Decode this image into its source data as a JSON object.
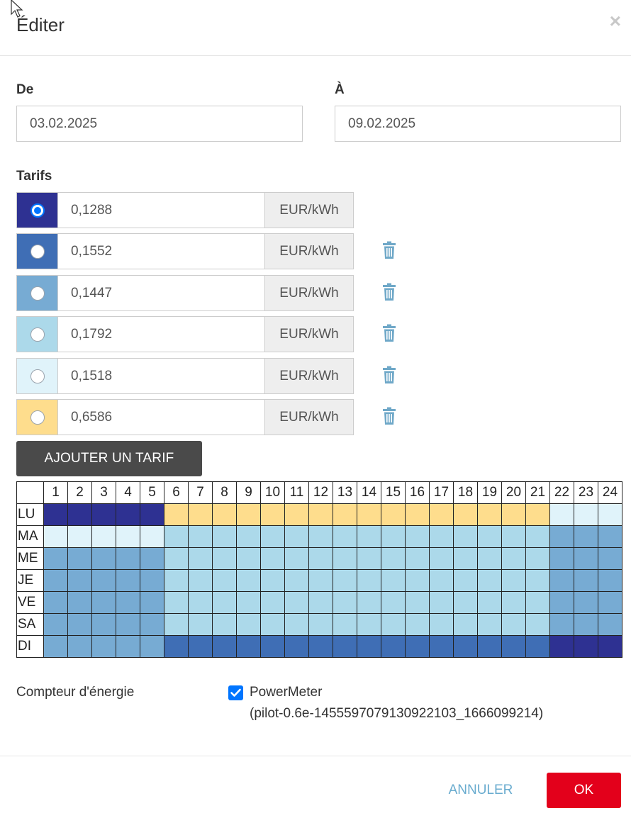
{
  "modal": {
    "title": "Éditer",
    "close_label": "×"
  },
  "dates": {
    "from_label": "De",
    "from_value": "03.02.2025",
    "to_label": "À",
    "to_value": "09.02.2025"
  },
  "tariffs": {
    "label": "Tarifs",
    "unit": "EUR/kWh",
    "items": [
      {
        "value": "0,1288",
        "color": "#2e3192",
        "selected": true,
        "deletable": false
      },
      {
        "value": "0,1552",
        "color": "#3f6eb5",
        "selected": false,
        "deletable": true
      },
      {
        "value": "0,1447",
        "color": "#77abd3",
        "selected": false,
        "deletable": true
      },
      {
        "value": "0,1792",
        "color": "#acd9ea",
        "selected": false,
        "deletable": true
      },
      {
        "value": "0,1518",
        "color": "#e0f3fa",
        "selected": false,
        "deletable": true
      },
      {
        "value": "0,6586",
        "color": "#fedd8d",
        "selected": false,
        "deletable": true
      }
    ],
    "add_button_label": "AJOUTER UN TARIF"
  },
  "schedule": {
    "hours": [
      "1",
      "2",
      "3",
      "4",
      "5",
      "6",
      "7",
      "8",
      "9",
      "10",
      "11",
      "12",
      "13",
      "14",
      "15",
      "16",
      "17",
      "18",
      "19",
      "20",
      "21",
      "22",
      "23",
      "24"
    ],
    "rows": [
      {
        "day": "LU",
        "tariffs": [
          0,
          0,
          0,
          0,
          0,
          5,
          5,
          5,
          5,
          5,
          5,
          5,
          5,
          5,
          5,
          5,
          5,
          5,
          5,
          5,
          5,
          4,
          4,
          4
        ]
      },
      {
        "day": "MA",
        "tariffs": [
          4,
          4,
          4,
          4,
          4,
          3,
          3,
          3,
          3,
          3,
          3,
          3,
          3,
          3,
          3,
          3,
          3,
          3,
          3,
          3,
          3,
          2,
          2,
          2
        ]
      },
      {
        "day": "ME",
        "tariffs": [
          2,
          2,
          2,
          2,
          2,
          3,
          3,
          3,
          3,
          3,
          3,
          3,
          3,
          3,
          3,
          3,
          3,
          3,
          3,
          3,
          3,
          2,
          2,
          2
        ]
      },
      {
        "day": "JE",
        "tariffs": [
          2,
          2,
          2,
          2,
          2,
          3,
          3,
          3,
          3,
          3,
          3,
          3,
          3,
          3,
          3,
          3,
          3,
          3,
          3,
          3,
          3,
          2,
          2,
          2
        ]
      },
      {
        "day": "VE",
        "tariffs": [
          2,
          2,
          2,
          2,
          2,
          3,
          3,
          3,
          3,
          3,
          3,
          3,
          3,
          3,
          3,
          3,
          3,
          3,
          3,
          3,
          3,
          2,
          2,
          2
        ]
      },
      {
        "day": "SA",
        "tariffs": [
          2,
          2,
          2,
          2,
          2,
          3,
          3,
          3,
          3,
          3,
          3,
          3,
          3,
          3,
          3,
          3,
          3,
          3,
          3,
          3,
          3,
          2,
          2,
          2
        ]
      },
      {
        "day": "DI",
        "tariffs": [
          2,
          2,
          2,
          2,
          2,
          1,
          1,
          1,
          1,
          1,
          1,
          1,
          1,
          1,
          1,
          1,
          1,
          1,
          1,
          1,
          1,
          0,
          0,
          0
        ]
      }
    ]
  },
  "meter": {
    "label": "Compteur d'énergie",
    "checked": true,
    "name": "PowerMeter",
    "id": "(pilot-0.6e-1455597079130922103_1666099214)"
  },
  "footer": {
    "cancel_label": "ANNULER",
    "ok_label": "OK"
  },
  "icons": {
    "close": "close-icon",
    "delete": "trash-icon",
    "checkbox": "checkmark-icon",
    "cursor": "mouse-cursor-icon"
  }
}
